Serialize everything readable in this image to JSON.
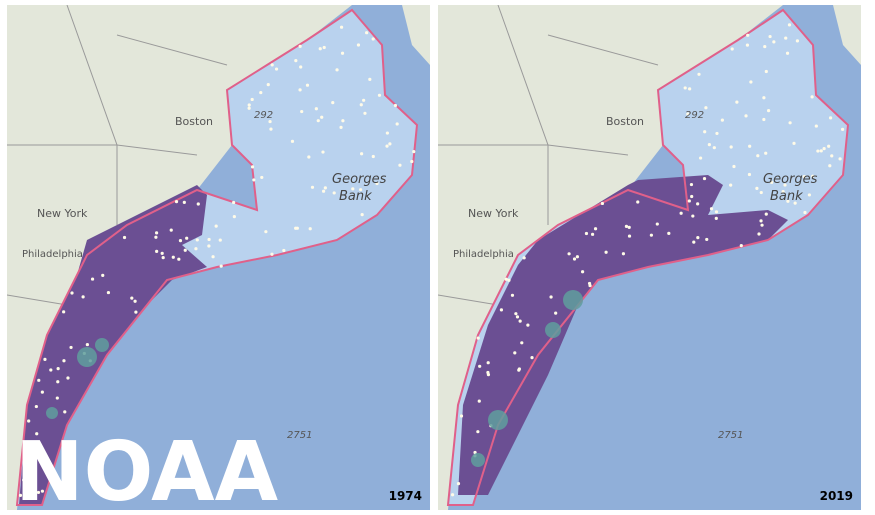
{
  "panels": [
    {
      "year": "1974",
      "watermark": "NOAA",
      "labels": [
        "Boston",
        "New York",
        "Philadelphia",
        "292",
        "Georges",
        "Bank",
        "2751"
      ]
    },
    {
      "year": "2019",
      "labels": [
        "Boston",
        "New York",
        "Philadelphia",
        "292",
        "Georges",
        "Bank",
        "2751"
      ]
    }
  ]
}
